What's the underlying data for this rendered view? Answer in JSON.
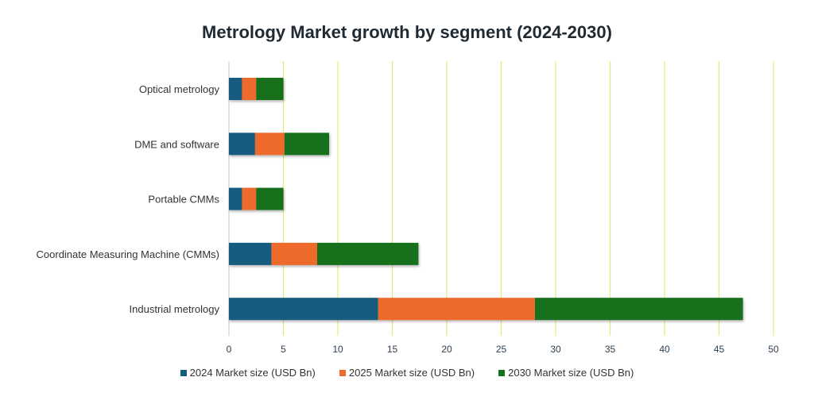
{
  "chart_data": {
    "type": "bar",
    "orientation": "horizontal",
    "stacked": true,
    "title": "Metrology Market growth by segment (2024-2030)",
    "xlabel": "",
    "ylabel": "",
    "xlim": [
      0,
      50
    ],
    "xticks": [
      "0",
      "5",
      "10",
      "15",
      "20",
      "25",
      "30",
      "35",
      "40",
      "45",
      "50"
    ],
    "grid": true,
    "legend_position": "bottom",
    "categories": [
      "Optical metrology",
      "DME and software",
      "Portable CMMs",
      "Coordinate Measuring Machine (CMMs)",
      "Industrial metrology"
    ],
    "series": [
      {
        "name": "2024 Market size (USD Bn)",
        "color": "#145b80",
        "values": [
          1.2,
          2.4,
          1.2,
          3.9,
          13.7
        ]
      },
      {
        "name": "2025 Market size (USD Bn)",
        "color": "#ee6b2b",
        "values": [
          1.3,
          2.7,
          1.3,
          4.2,
          14.4
        ]
      },
      {
        "name": "2030 Market size (USD Bn)",
        "color": "#17701e",
        "values": [
          2.5,
          4.1,
          2.5,
          9.3,
          19.1
        ]
      }
    ],
    "gridline_color": "#e6e87a"
  }
}
